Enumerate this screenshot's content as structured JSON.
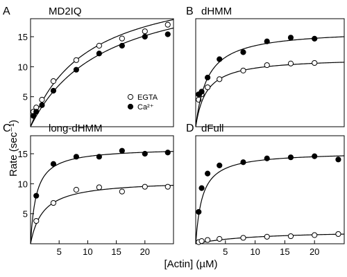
{
  "figure": {
    "ylabel": "Rate (sec⁻¹)",
    "xlabel": "[Actin] (µM)"
  },
  "legend": {
    "items": [
      {
        "label": "EGTA",
        "marker": "open-circle"
      },
      {
        "label": "Ca²⁺",
        "marker": "filled-circle"
      }
    ]
  },
  "chart_data": [
    {
      "type": "scatter",
      "letter": "A",
      "title": "MD2IQ",
      "xlim": [
        0,
        25
      ],
      "ylim": [
        0,
        18
      ],
      "xticks": [],
      "yticks": [
        5,
        10,
        15
      ],
      "series": [
        {
          "name": "EGTA",
          "marker": "open-circle",
          "x": [
            0.5,
            1,
            2,
            4,
            8,
            12,
            16,
            20,
            24
          ],
          "y": [
            2.5,
            3.2,
            4.5,
            7.6,
            11.1,
            13.5,
            14.7,
            15.9,
            17.0
          ],
          "fit": {
            "vmax": 25.0,
            "k": 10.0
          }
        },
        {
          "name": "Ca²⁺",
          "marker": "filled-circle",
          "x": [
            0.5,
            1,
            2,
            4,
            8,
            12,
            16,
            20,
            24
          ],
          "y": [
            1.8,
            2.5,
            3.6,
            6.0,
            9.5,
            12.2,
            13.5,
            15.0,
            15.4
          ],
          "fit": {
            "vmax": 25.0,
            "k": 13.0
          }
        }
      ]
    },
    {
      "type": "scatter",
      "letter": "B",
      "title": "dHMM",
      "xlim": [
        0,
        25
      ],
      "ylim": [
        0,
        20
      ],
      "xticks": [],
      "yticks": [],
      "series": [
        {
          "name": "EGTA",
          "marker": "open-circle",
          "x": [
            0.5,
            1,
            2,
            4,
            8,
            12,
            16,
            20
          ],
          "y": [
            5.0,
            6.0,
            7.3,
            8.8,
            10.4,
            11.4,
            11.7,
            11.8
          ],
          "fit": {
            "vmax": 12.8,
            "k": 1.8
          }
        },
        {
          "name": "Ca²⁺",
          "marker": "filled-circle",
          "x": [
            0.5,
            1,
            2,
            4,
            8,
            12,
            16,
            20
          ],
          "y": [
            6.0,
            6.5,
            9.1,
            12.5,
            13.8,
            15.8,
            16.5,
            16.3
          ],
          "fit": {
            "vmax": 18.0,
            "k": 2.0
          }
        }
      ]
    },
    {
      "type": "scatter",
      "letter": "C",
      "title": "long-dHMM",
      "xlim": [
        0,
        25
      ],
      "ylim": [
        0,
        18
      ],
      "xticks": [
        5,
        10,
        15,
        20
      ],
      "yticks": [
        5,
        10,
        15
      ],
      "series": [
        {
          "name": "EGTA",
          "marker": "open-circle",
          "x": [
            1,
            4,
            8,
            12,
            16,
            20,
            24
          ],
          "y": [
            3.8,
            6.8,
            9.0,
            9.4,
            8.7,
            9.5,
            9.5
          ],
          "fit": {
            "vmax": 10.6,
            "k": 2.2
          }
        },
        {
          "name": "Ca²⁺",
          "marker": "filled-circle",
          "x": [
            1,
            4,
            8,
            12,
            16,
            20,
            24
          ],
          "y": [
            8.0,
            13.3,
            14.5,
            14.5,
            15.5,
            15.0,
            15.2
          ],
          "fit": {
            "vmax": 16.0,
            "k": 1.0
          }
        }
      ]
    },
    {
      "type": "scatter",
      "letter": "D",
      "title": "dFull",
      "xlim": [
        0,
        25
      ],
      "ylim": [
        0,
        20
      ],
      "xticks": [
        5,
        10,
        15,
        20
      ],
      "yticks": [],
      "series": [
        {
          "name": "EGTA",
          "marker": "open-circle",
          "x": [
            0.5,
            1,
            2,
            4,
            8,
            12,
            16,
            20,
            24
          ],
          "y": [
            0.3,
            0.5,
            0.7,
            0.9,
            1.1,
            1.3,
            1.4,
            1.6,
            1.8
          ],
          "fit": {
            "vmax": 2.5,
            "k": 10.0
          }
        },
        {
          "name": "Ca²⁺",
          "marker": "filled-circle",
          "x": [
            0.5,
            1,
            2,
            4,
            8,
            12,
            16,
            20,
            24
          ],
          "y": [
            5.9,
            10.3,
            13.0,
            14.5,
            15.1,
            15.8,
            16.0,
            16.2,
            15.6
          ],
          "fit": {
            "vmax": 17.0,
            "k": 1.1
          }
        }
      ]
    }
  ]
}
